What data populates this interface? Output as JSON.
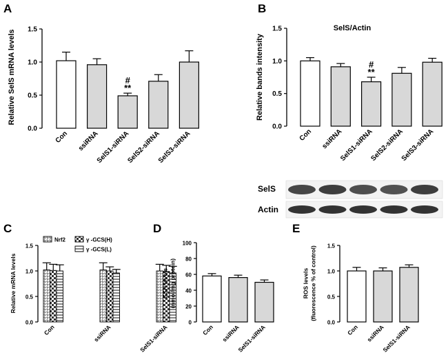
{
  "colors": {
    "white": "#ffffff",
    "gray": "#d8d8d8",
    "black": "#000000"
  },
  "chart_data": [
    {
      "panel": "A",
      "type": "bar",
      "title": "",
      "ylabel": "Relative SelS mRNA levels",
      "ylim": [
        0,
        1.5
      ],
      "yticks": [
        "0.0",
        "0.5",
        "1.0",
        "1.5"
      ],
      "categories": [
        "Con",
        "ssiRNA",
        "SelS1-siRNA",
        "SelS2-siRNA",
        "SelS3-siRNA"
      ],
      "values": [
        1.02,
        0.96,
        0.49,
        0.71,
        1.0
      ],
      "errors": [
        0.13,
        0.09,
        0.04,
        0.1,
        0.17
      ],
      "fills": [
        "white",
        "gray",
        "gray",
        "gray",
        "gray"
      ],
      "annotations": [
        {
          "index": 2,
          "lines": [
            "#",
            "**"
          ]
        }
      ]
    },
    {
      "panel": "B",
      "type": "bar",
      "title": "SelS/Actin",
      "ylabel": "Relative bands intensity",
      "ylim": [
        0,
        1.5
      ],
      "yticks": [
        "0.0",
        "0.5",
        "1.0",
        "1.5"
      ],
      "categories": [
        "Con",
        "ssiRNA",
        "SelS1-siRNA",
        "SelS2-siRNA",
        "SelS3-siRNA"
      ],
      "values": [
        1.0,
        0.91,
        0.68,
        0.81,
        0.98
      ],
      "errors": [
        0.05,
        0.05,
        0.07,
        0.09,
        0.06
      ],
      "fills": [
        "white",
        "gray",
        "gray",
        "gray",
        "gray"
      ],
      "annotations": [
        {
          "index": 2,
          "lines": [
            "#",
            "**"
          ]
        }
      ]
    },
    {
      "panel": "C",
      "type": "bar",
      "title": "",
      "ylabel": "Relative mRNA levels",
      "ylim": [
        0,
        1.5
      ],
      "yticks": [
        "0.0",
        "0.5",
        "1.0",
        "1.5"
      ],
      "categories": [
        "Con",
        "ssiRNA",
        "SelS1-siRNA"
      ],
      "series": [
        {
          "name": "Nrf2",
          "values": [
            1.02,
            1.02,
            1.0
          ],
          "errors": [
            0.14,
            0.14,
            0.13
          ],
          "pattern": "grid"
        },
        {
          "name": "γ -GCS(H)",
          "values": [
            1.01,
            1.0,
            0.99
          ],
          "errors": [
            0.12,
            0.08,
            0.12
          ],
          "pattern": "check"
        },
        {
          "name": "γ -GCS(L)",
          "values": [
            1.0,
            0.96,
            0.96
          ],
          "errors": [
            0.12,
            0.07,
            0.13
          ],
          "pattern": "hatch"
        }
      ]
    },
    {
      "panel": "D",
      "type": "bar",
      "title": "",
      "ylabel": "GSH levels\n(nmol/mg protein)",
      "ylim": [
        0,
        100
      ],
      "yticks": [
        "0",
        "20",
        "40",
        "60",
        "80",
        "100"
      ],
      "categories": [
        "Con",
        "ssiRNA",
        "SelS1-siRNA"
      ],
      "values": [
        58,
        56,
        50
      ],
      "errors": [
        3,
        3,
        3
      ],
      "fills": [
        "white",
        "gray",
        "gray"
      ]
    },
    {
      "panel": "E",
      "type": "bar",
      "title": "",
      "ylabel": "ROS levels\n(fluorescence % of control)",
      "ylim": [
        0,
        1.5
      ],
      "yticks": [
        "0.0",
        "0.5",
        "1.0",
        "1.5"
      ],
      "categories": [
        "Con",
        "ssiRNA",
        "SelS1-siRNA"
      ],
      "values": [
        1.0,
        1.0,
        1.07
      ],
      "errors": [
        0.07,
        0.06,
        0.05
      ],
      "fills": [
        "white",
        "gray",
        "gray"
      ]
    }
  ],
  "western_blot": {
    "rows": [
      "SelS",
      "Actin"
    ],
    "lanes": 5
  }
}
